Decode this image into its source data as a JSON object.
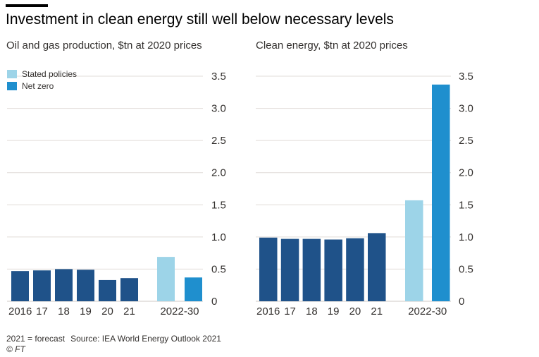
{
  "title": "Investment in clean energy still well below necessary levels",
  "colors": {
    "actual": "#1f5289",
    "stated_policies": "#9dd4e8",
    "net_zero": "#1f8fce",
    "grid": "#e0dcd8",
    "text": "#33302e"
  },
  "legend": [
    {
      "label": "Stated policies",
      "color_key": "stated_policies"
    },
    {
      "label": "Net zero",
      "color_key": "net_zero"
    }
  ],
  "chart_data": [
    {
      "type": "bar",
      "title": "Oil and gas production, $tn at 2020 prices",
      "categories": [
        "2016",
        "17",
        "18",
        "19",
        "20",
        "21",
        "2022-30"
      ],
      "series": [
        {
          "name": "",
          "values": [
            0.47,
            0.48,
            0.5,
            0.49,
            0.33,
            0.36,
            null
          ]
        },
        {
          "name": "Stated policies",
          "values": [
            null,
            null,
            null,
            null,
            null,
            null,
            0.69
          ]
        },
        {
          "name": "Net zero",
          "values": [
            null,
            null,
            null,
            null,
            null,
            null,
            0.37
          ]
        }
      ],
      "ylim": [
        0,
        3.5
      ],
      "yticks": [
        "0",
        "0.5",
        "1.0",
        "1.5",
        "2.0",
        "2.5",
        "3.0",
        "3.5"
      ],
      "grid": true,
      "legend_position": "top-left"
    },
    {
      "type": "bar",
      "title": "Clean energy, $tn at 2020 prices",
      "categories": [
        "2016",
        "17",
        "18",
        "19",
        "20",
        "21",
        "2022-30"
      ],
      "series": [
        {
          "name": "",
          "values": [
            0.99,
            0.97,
            0.97,
            0.96,
            0.98,
            1.06,
            null
          ]
        },
        {
          "name": "Stated policies",
          "values": [
            null,
            null,
            null,
            null,
            null,
            null,
            1.57
          ]
        },
        {
          "name": "Net zero",
          "values": [
            null,
            null,
            null,
            null,
            null,
            null,
            3.37
          ]
        }
      ],
      "ylim": [
        0,
        3.5
      ],
      "yticks": [
        "0",
        "0.5",
        "1.0",
        "1.5",
        "2.0",
        "2.5",
        "3.0",
        "3.5"
      ],
      "grid": true
    }
  ],
  "footer": {
    "note": "2021 = forecast",
    "source": "Source: IEA World Energy Outlook 2021",
    "copyright": "© FT"
  }
}
